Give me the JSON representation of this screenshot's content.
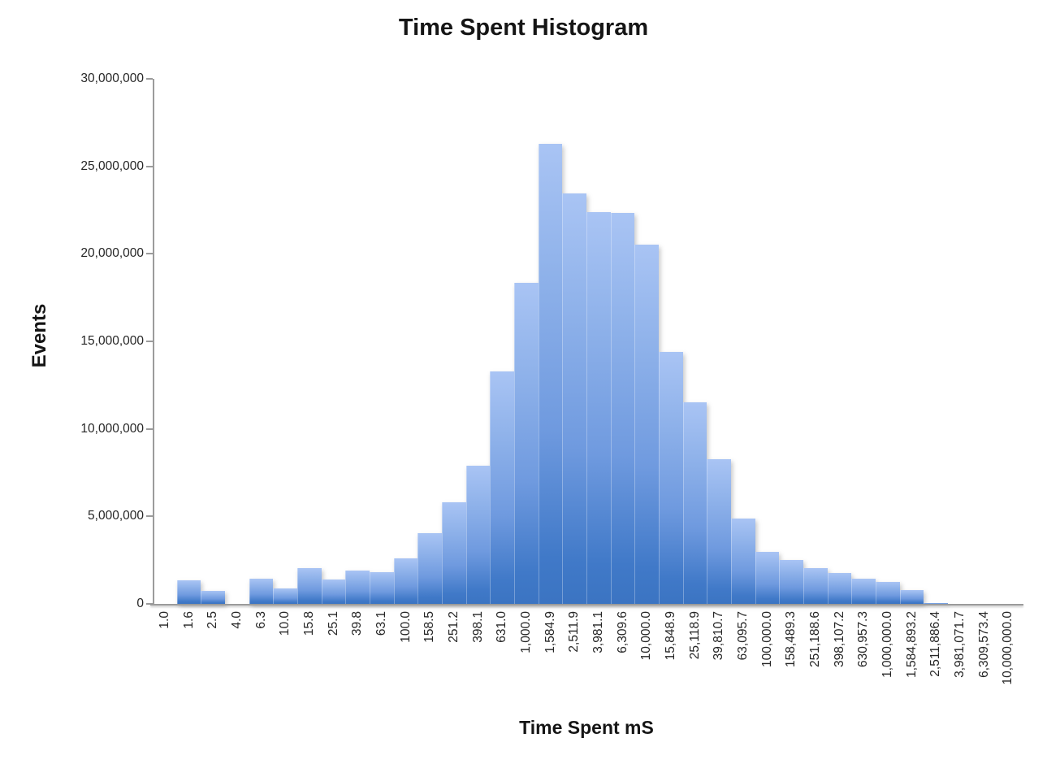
{
  "chart_data": {
    "type": "bar",
    "title": "Time Spent Histogram",
    "xlabel": "Time Spent mS",
    "ylabel": "Events",
    "ylim": [
      0,
      30000000
    ],
    "ytick_interval": 5000000,
    "ytick_labels": [
      "0",
      "5,000,000",
      "10,000,000",
      "15,000,000",
      "20,000,000",
      "25,000,000",
      "30,000,000"
    ],
    "grid": false,
    "legend": "none",
    "x_scale_note": "logarithmic buckets, labels rotated 90 degrees",
    "categories": [
      "1.0",
      "1.6",
      "2.5",
      "4.0",
      "6.3",
      "10.0",
      "15.8",
      "25.1",
      "39.8",
      "63.1",
      "100.0",
      "158.5",
      "251.2",
      "398.1",
      "631.0",
      "1,000.0",
      "1,584.9",
      "2,511.9",
      "3,981.1",
      "6,309.6",
      "10,000.0",
      "15,848.9",
      "25,118.9",
      "39,810.7",
      "63,095.7",
      "100,000.0",
      "158,489.3",
      "251,188.6",
      "398,107.2",
      "630,957.3",
      "1,000,000.0",
      "1,584,893.2",
      "2,511,886.4",
      "3,981,071.7",
      "6,309,573.4",
      "10,000,000.0"
    ],
    "values": [
      0,
      1350000,
      750000,
      0,
      1450000,
      900000,
      2050000,
      1400000,
      1900000,
      1800000,
      2600000,
      4050000,
      5800000,
      7900000,
      13300000,
      18350000,
      26300000,
      23450000,
      22400000,
      22350000,
      20550000,
      14400000,
      11500000,
      8250000,
      4900000,
      2950000,
      2500000,
      2050000,
      1750000,
      1450000,
      1250000,
      800000,
      50000,
      0,
      0,
      0
    ]
  },
  "colors": {
    "bar_gradient_top": "#a9c4f4",
    "bar_gradient_bottom": "#3b74c2",
    "axis_line": "#9b9b9b",
    "text": "#262626",
    "title_text": "#151515",
    "background": "#ffffff"
  }
}
